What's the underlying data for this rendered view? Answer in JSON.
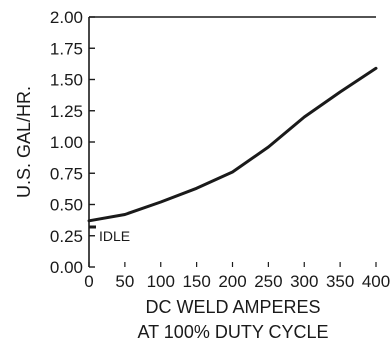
{
  "chart_data": {
    "type": "line",
    "x": [
      0,
      50,
      100,
      150,
      200,
      250,
      300,
      350,
      400
    ],
    "series": [
      {
        "values": [
          0.37,
          0.42,
          0.52,
          0.63,
          0.76,
          0.96,
          1.2,
          1.4,
          1.59
        ]
      }
    ],
    "idle": {
      "label": "IDLE",
      "value": 0.32
    },
    "ylabel": "U.S. GAL/HR.",
    "xlabel": [
      "DC WELD AMPERES",
      "AT 100% DUTY CYCLE"
    ],
    "xlim": [
      0,
      400
    ],
    "ylim": [
      0,
      2.0
    ],
    "xticks": [
      "0",
      "50",
      "100",
      "150",
      "200",
      "250",
      "300",
      "350",
      "400"
    ],
    "yticks": [
      "0.00",
      "0.25",
      "0.50",
      "0.75",
      "1.00",
      "1.25",
      "1.50",
      "1.75",
      "2.00"
    ],
    "grid": false,
    "line_color": "#1a1a1a"
  }
}
